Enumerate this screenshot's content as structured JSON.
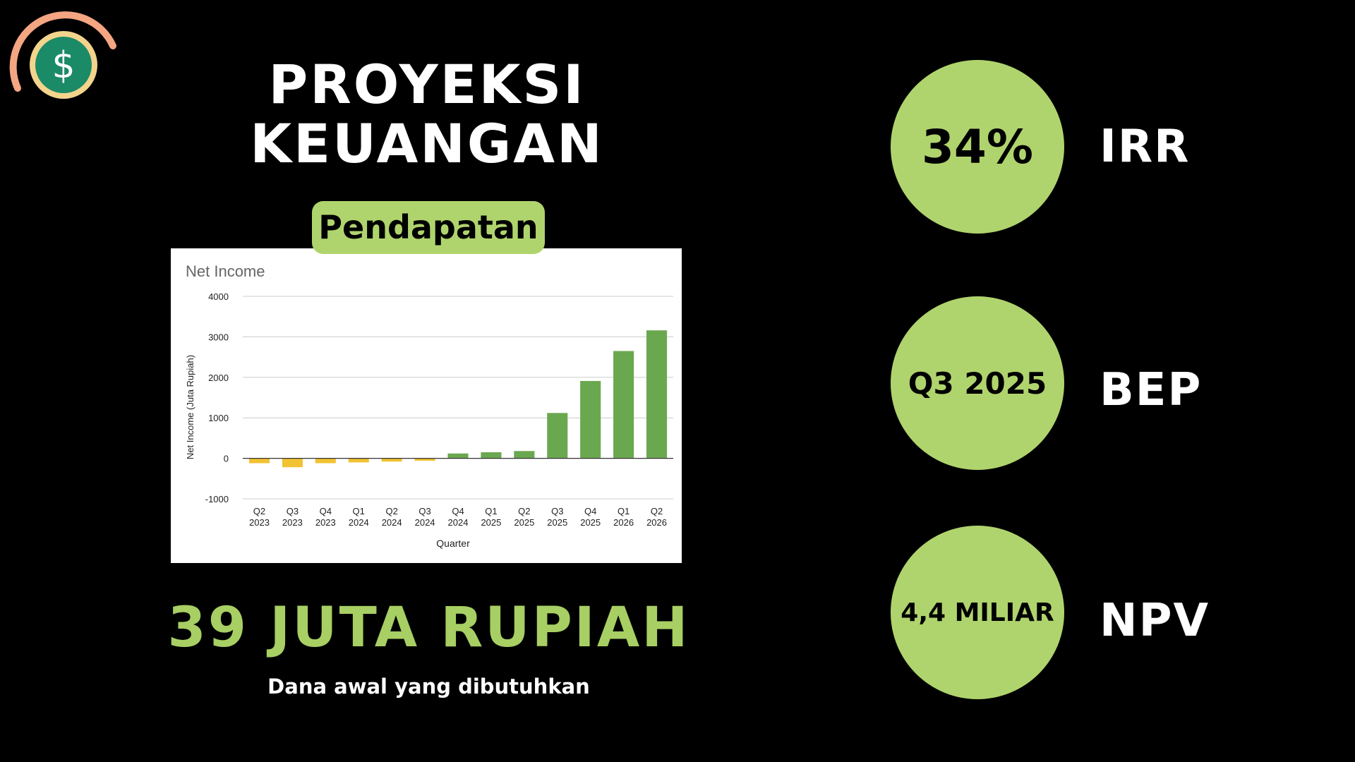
{
  "title": {
    "line1": "PROYEKSI",
    "line2": "KEUANGAN"
  },
  "section_label": "Pendapatan",
  "logo": {
    "icon": "dollar-coin-icon",
    "glyph": "$"
  },
  "funding": {
    "amount": "39 JUTA RUPIAH",
    "caption": "Dana awal yang dibutuhkan"
  },
  "metrics": [
    {
      "value": "34%",
      "label": "IRR"
    },
    {
      "value": "Q3 2025",
      "label": "BEP"
    },
    {
      "value": "4,4 MILIAR",
      "label": "NPV"
    }
  ],
  "colors": {
    "accent": "#b0d46d",
    "amount_text": "#a7cf63",
    "positive_bar": "#6aa84f",
    "negative_bar": "#f1c232",
    "background": "#000000",
    "gridline": "#cccccc"
  },
  "chart_data": {
    "type": "bar",
    "title": "Net Income",
    "xlabel": "Quarter",
    "ylabel": "Net Income (Juta Rupiah)",
    "ylim": [
      -1000,
      4000
    ],
    "yticks": [
      4000,
      3000,
      2000,
      1000,
      0,
      -1000
    ],
    "grid": true,
    "categories": [
      [
        "Q2",
        "2023"
      ],
      [
        "Q3",
        "2023"
      ],
      [
        "Q4",
        "2023"
      ],
      [
        "Q1",
        "2024"
      ],
      [
        "Q2",
        "2024"
      ],
      [
        "Q3",
        "2024"
      ],
      [
        "Q4",
        "2024"
      ],
      [
        "Q1",
        "2025"
      ],
      [
        "Q2",
        "2025"
      ],
      [
        "Q3",
        "2025"
      ],
      [
        "Q4",
        "2025"
      ],
      [
        "Q1",
        "2026"
      ],
      [
        "Q2",
        "2026"
      ]
    ],
    "values": [
      -120,
      -220,
      -120,
      -100,
      -80,
      -60,
      120,
      150,
      180,
      1120,
      1910,
      2650,
      3160
    ]
  }
}
